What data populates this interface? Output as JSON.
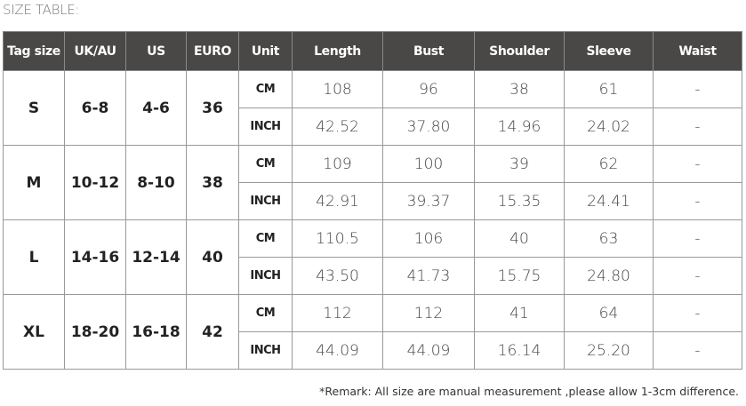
{
  "title": "SIZE TABLE:",
  "headers": [
    "Tag size",
    "UK/AU",
    "US",
    "EURO",
    "Unit",
    "Length",
    "Bust",
    "Shoulder",
    "Sleeve",
    "Waist"
  ],
  "rows": [
    {
      "size": "S",
      "uk": "6-8",
      "us": "4-6",
      "euro": "36",
      "cm": {
        "unit": "CM",
        "length": "108",
        "bust": "96",
        "shoulder": "38",
        "sleeve": "61",
        "waist": "-"
      },
      "inch": {
        "unit": "INCH",
        "length": "42.52",
        "bust": "37.80",
        "shoulder": "14.96",
        "sleeve": "24.02",
        "waist": "-"
      }
    },
    {
      "size": "M",
      "uk": "10-12",
      "us": "8-10",
      "euro": "38",
      "cm": {
        "unit": "CM",
        "length": "109",
        "bust": "100",
        "shoulder": "39",
        "sleeve": "62",
        "waist": "-"
      },
      "inch": {
        "unit": "INCH",
        "length": "42.91",
        "bust": "39.37",
        "shoulder": "15.35",
        "sleeve": "24.41",
        "waist": "-"
      }
    },
    {
      "size": "L",
      "uk": "14-16",
      "us": "12-14",
      "euro": "40",
      "cm": {
        "unit": "CM",
        "length": "110.5",
        "bust": "106",
        "shoulder": "40",
        "sleeve": "63",
        "waist": "-"
      },
      "inch": {
        "unit": "INCH",
        "length": "43.50",
        "bust": "41.73",
        "shoulder": "15.75",
        "sleeve": "24.80",
        "waist": "-"
      }
    },
    {
      "size": "XL",
      "uk": "18-20",
      "us": "16-18",
      "euro": "42",
      "cm": {
        "unit": "CM",
        "length": "112",
        "bust": "112",
        "shoulder": "41",
        "sleeve": "64",
        "waist": "-"
      },
      "inch": {
        "unit": "INCH",
        "length": "44.09",
        "bust": "44.09",
        "shoulder": "16.14",
        "sleeve": "25.20",
        "waist": "-"
      }
    }
  ],
  "remark": "*Remark: All size are manual measurement ,please allow 1-3cm difference."
}
